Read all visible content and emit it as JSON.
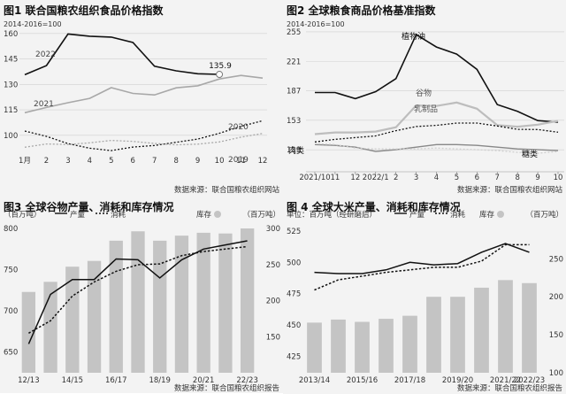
{
  "colors": {
    "black": "#111111",
    "gray": "#a8a8a8",
    "bar": "#c4c4c4",
    "bg": "#f3f3f3"
  },
  "panels": {
    "p1": {
      "title": "图1 联合国粮农组织食品价格指数",
      "note": "2014-2016=100",
      "source": "数据来源：联合国粮农组织网站"
    },
    "p2": {
      "title": "图2 全球粮食商品价格基准指数",
      "note": "2014-2016=100",
      "source": "数据来源：联合国粮农组织网站"
    },
    "p3": {
      "title": "图3 全球谷物产量、消耗和库存情况",
      "left_unit": "（百万吨）",
      "right_unit": "库存",
      "right_unit2": "（百万吨）",
      "legend_prod": "产量",
      "legend_cons": "消耗",
      "source": "数据来源：联合国粮农组织报告"
    },
    "p4": {
      "title": "图 4 全球大米产量、消耗和库存情况",
      "left_unit": "单位：百万吨（经研磨后）",
      "right_unit": "库存",
      "right_unit2": "（百万吨）",
      "legend_prod": "产量",
      "legend_cons": "消耗",
      "source": "数据来源：联合国粮农组织报告"
    }
  },
  "chart_data": [
    {
      "type": "line",
      "title": "图1 联合国粮农组织食品价格指数",
      "x": [
        "1月",
        "2",
        "3",
        "4",
        "5",
        "6",
        "7",
        "8",
        "9",
        "10",
        "11",
        "12"
      ],
      "ylim": [
        90,
        162
      ],
      "yticks": [
        "160",
        "145",
        "130",
        "115",
        "100"
      ],
      "series": [
        {
          "name": "2022",
          "values": [
            135.7,
            141.1,
            159.7,
            158.4,
            157.9,
            154.7,
            140.7,
            138.0,
            136.3,
            135.9,
            null,
            null
          ]
        },
        {
          "name": "2021",
          "values": [
            113.3,
            116.4,
            119.2,
            121.8,
            128.1,
            124.7,
            123.8,
            128.0,
            129.2,
            133.2,
            135.3,
            133.7
          ]
        },
        {
          "name": "2020",
          "values": [
            102.5,
            99.4,
            95.1,
            92.4,
            91.0,
            93.1,
            94.0,
            95.9,
            97.8,
            101.2,
            105.3,
            108.6
          ]
        },
        {
          "name": "2019",
          "values": [
            93.0,
            94.9,
            94.6,
            95.6,
            97.0,
            96.4,
            95.2,
            94.4,
            94.8,
            96.1,
            98.9,
            101.1
          ]
        }
      ],
      "annotations": [
        "135.9"
      ]
    },
    {
      "type": "line",
      "title": "图2 全球粮食商品价格基准指数",
      "x": [
        "2021/10",
        "11",
        "12",
        "2022/1",
        "2",
        "3",
        "4",
        "5",
        "6",
        "7",
        "8",
        "9",
        "10"
      ],
      "xticks": [
        "2021/10",
        "11",
        "12",
        "2022/1",
        "2",
        "3",
        "4",
        "5",
        "6",
        "7",
        "8",
        "9",
        "10"
      ],
      "ylim": [
        112,
        257
      ],
      "yticks": [
        "255",
        "221",
        "187",
        "153",
        "119"
      ],
      "series": [
        {
          "name": "植物油",
          "values": [
            185.0,
            185.0,
            178.0,
            186.0,
            201.0,
            251.8,
            237.5,
            229.3,
            211.8,
            171.1,
            163.3,
            152.6,
            150.8
          ]
        },
        {
          "name": "谷物",
          "values": [
            137.0,
            139.0,
            139.0,
            140.0,
            145.0,
            170.1,
            169.5,
            173.5,
            166.3,
            147.3,
            145.6,
            147.9,
            152.3
          ]
        },
        {
          "name": "乳制品",
          "values": [
            128.0,
            131.0,
            133.0,
            135.0,
            141.0,
            145.8,
            147.1,
            149.8,
            149.8,
            146.4,
            142.5,
            142.3,
            139.3
          ]
        },
        {
          "name": "肉类",
          "values": [
            125.0,
            124.0,
            122.0,
            117.0,
            119.0,
            122.0,
            125.0,
            125.0,
            124.0,
            122.0,
            120.0,
            119.0,
            118.0
          ]
        },
        {
          "name": "糖类",
          "values": [
            126.0,
            125.0,
            121.0,
            120.0,
            120.0,
            120.0,
            121.0,
            120.0,
            119.0,
            118.0,
            116.0,
            115.0,
            117.0
          ]
        }
      ]
    },
    {
      "type": "bar",
      "title": "图3 全球谷物产量、消耗和库存情况",
      "categories": [
        "12/13",
        "13/14",
        "14/15",
        "15/16",
        "16/17",
        "17/18",
        "18/19",
        "19/20",
        "20/21",
        "21/22",
        "22/23"
      ],
      "xticks": [
        "12/13",
        "14/15",
        "16/17",
        "18/19",
        "20/21",
        "22/23"
      ],
      "yleft_lim": [
        625,
        800
      ],
      "yright_lim": [
        100,
        300
      ],
      "yleft_ticks": [
        "800",
        "750",
        "700",
        "650"
      ],
      "yright_ticks": [
        "300",
        "250",
        "200",
        "150"
      ],
      "series": [
        {
          "name": "库存",
          "axis": "right",
          "kind": "bar",
          "values": [
            212,
            226,
            247,
            255,
            283,
            296,
            283,
            290,
            294,
            293,
            300
          ]
        },
        {
          "name": "产量",
          "axis": "left",
          "kind": "line",
          "values": [
            660,
            720,
            738,
            738,
            763,
            762,
            740,
            762,
            775,
            780,
            785
          ]
        },
        {
          "name": "消耗",
          "axis": "left",
          "kind": "dashed",
          "values": [
            673,
            688,
            718,
            735,
            748,
            756,
            757,
            767,
            772,
            775,
            778
          ]
        }
      ]
    },
    {
      "type": "bar",
      "title": "图 4 全球大米产量、消耗和库存情况",
      "categories": [
        "2013/14",
        "2014/15",
        "2015/16",
        "2016/17",
        "2017/18",
        "2018/19",
        "2019/20",
        "2020/21",
        "2021/22",
        "2022/23"
      ],
      "xticks": [
        "2013/14",
        "2015/16",
        "2017/18",
        "2019/20",
        "2021/22",
        "2022/23"
      ],
      "yleft_lim": [
        412,
        527
      ],
      "yright_lim": [
        100,
        290
      ],
      "yleft_ticks": [
        "525",
        "500",
        "475",
        "450",
        "425"
      ],
      "yright_ticks": [
        "250",
        "200",
        "150",
        "100"
      ],
      "series": [
        {
          "name": "库存",
          "axis": "right",
          "kind": "bar",
          "values": [
            166,
            170,
            167,
            171,
            175,
            200,
            200,
            212,
            222,
            218
          ]
        },
        {
          "name": "产量",
          "axis": "left",
          "kind": "line",
          "values": [
            492,
            491,
            491,
            494,
            500,
            498,
            499,
            508,
            515,
            508
          ]
        },
        {
          "name": "消耗",
          "axis": "left",
          "kind": "dashed",
          "values": [
            478,
            486,
            489,
            492,
            494,
            496,
            496,
            501,
            514,
            514
          ]
        }
      ],
      "series_notes": {
        "note": "stock bars read in right axis units"
      }
    }
  ]
}
